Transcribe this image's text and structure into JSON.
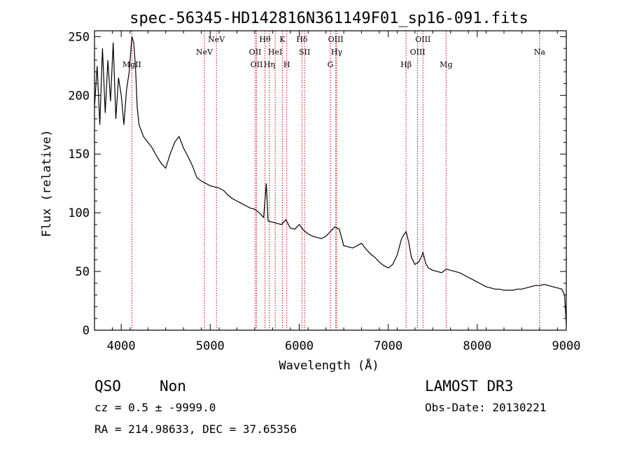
{
  "chart_data": {
    "type": "line",
    "title": "spec-56345-HD142816N361149F01_sp16-091.fits",
    "xlabel": "Wavelength (Å)",
    "ylabel": "Flux (relative)",
    "xlim": [
      3700,
      9000
    ],
    "ylim": [
      0,
      255
    ],
    "xticks": [
      4000,
      5000,
      6000,
      7000,
      8000,
      9000
    ],
    "yticks": [
      0,
      50,
      100,
      150,
      200,
      250
    ],
    "grid": false,
    "series": [
      {
        "x": [
          3700,
          3730,
          3760,
          3790,
          3820,
          3850,
          3880,
          3910,
          3940,
          3970,
          4000,
          4030,
          4060,
          4090,
          4120,
          4140,
          4160,
          4180,
          4200,
          4250,
          4300,
          4350,
          4400,
          4450,
          4500,
          4550,
          4600,
          4650,
          4700,
          4750,
          4800,
          4850,
          4900,
          4950,
          5000,
          5050,
          5100,
          5150,
          5200,
          5250,
          5300,
          5350,
          5400,
          5450,
          5500,
          5550,
          5600,
          5630,
          5650,
          5700,
          5750,
          5800,
          5850,
          5900,
          5950,
          6000,
          6050,
          6100,
          6150,
          6200,
          6250,
          6300,
          6350,
          6400,
          6450,
          6500,
          6550,
          6600,
          6650,
          6700,
          6750,
          6800,
          6850,
          6900,
          6950,
          7000,
          7050,
          7100,
          7150,
          7180,
          7200,
          7230,
          7260,
          7300,
          7340,
          7370,
          7390,
          7420,
          7450,
          7500,
          7550,
          7600,
          7650,
          7700,
          7750,
          7800,
          7850,
          7900,
          7950,
          8000,
          8050,
          8100,
          8150,
          8200,
          8250,
          8300,
          8350,
          8400,
          8450,
          8500,
          8550,
          8600,
          8650,
          8700,
          8750,
          8800,
          8850,
          8900,
          8950,
          8980,
          9000
        ],
        "values": [
          190,
          225,
          175,
          240,
          185,
          230,
          195,
          245,
          180,
          215,
          200,
          175,
          205,
          220,
          250,
          245,
          225,
          190,
          175,
          165,
          160,
          155,
          148,
          142,
          138,
          150,
          160,
          165,
          155,
          148,
          140,
          130,
          127,
          125,
          123,
          122,
          121,
          119,
          115,
          112,
          110,
          108,
          106,
          104,
          103,
          100,
          96,
          125,
          93,
          92,
          91,
          90,
          94,
          87,
          86,
          90,
          85,
          82,
          80,
          79,
          78,
          80,
          84,
          88,
          86,
          72,
          71,
          70,
          72,
          74,
          69,
          65,
          62,
          58,
          55,
          53,
          56,
          64,
          78,
          82,
          84,
          75,
          62,
          56,
          58,
          62,
          66,
          57,
          53,
          51,
          50,
          49,
          52,
          51,
          50,
          49,
          47,
          45,
          43,
          41,
          39,
          37,
          36,
          35,
          35,
          34,
          34,
          34,
          35,
          35,
          36,
          37,
          38,
          38,
          39,
          38,
          37,
          36,
          35,
          30,
          5
        ]
      }
    ],
    "lines": [
      {
        "label": "MgII",
        "x": 4120,
        "row": 3
      },
      {
        "label": "NeV",
        "x": 4935,
        "row": 2
      },
      {
        "label": "NeV",
        "x": 5070,
        "row": 1
      },
      {
        "label": "OII",
        "x": 5505,
        "row": 2
      },
      {
        "label": "OII",
        "x": 5520,
        "row": 3
      },
      {
        "label": "Hθ",
        "x": 5615,
        "row": 1
      },
      {
        "label": "Hη",
        "x": 5665,
        "row": 3
      },
      {
        "label": "HeI",
        "x": 5730,
        "row": 2
      },
      {
        "label": "K",
        "x": 5810,
        "row": 1
      },
      {
        "label": "H",
        "x": 5860,
        "row": 3
      },
      {
        "label": "Hδ",
        "x": 6030,
        "row": 1
      },
      {
        "label": "SII",
        "x": 6060,
        "row": 2
      },
      {
        "label": "G",
        "x": 6350,
        "row": 3
      },
      {
        "label": "OIII",
        "x": 6410,
        "row": 1
      },
      {
        "label": "Hγ",
        "x": 6420,
        "row": 2
      },
      {
        "label": "Hβ",
        "x": 7200,
        "row": 3
      },
      {
        "label": "OIII",
        "x": 7330,
        "row": 2
      },
      {
        "label": "OIII",
        "x": 7390,
        "row": 1
      },
      {
        "label": "Mg",
        "x": 7650,
        "row": 3
      },
      {
        "label": "Na",
        "x": 8700,
        "row": 2
      }
    ],
    "colors": {
      "spectrum": "#000000",
      "lines": "#cc0000"
    }
  },
  "footer": {
    "class_label": "QSO",
    "subclass_label": "Non",
    "survey": "LAMOST DR3",
    "redshift": "cz = 0.5 ± -9999.0",
    "obs_date": "Obs-Date: 20130221",
    "coords": "RA = 214.98633, DEC =  37.65356"
  }
}
